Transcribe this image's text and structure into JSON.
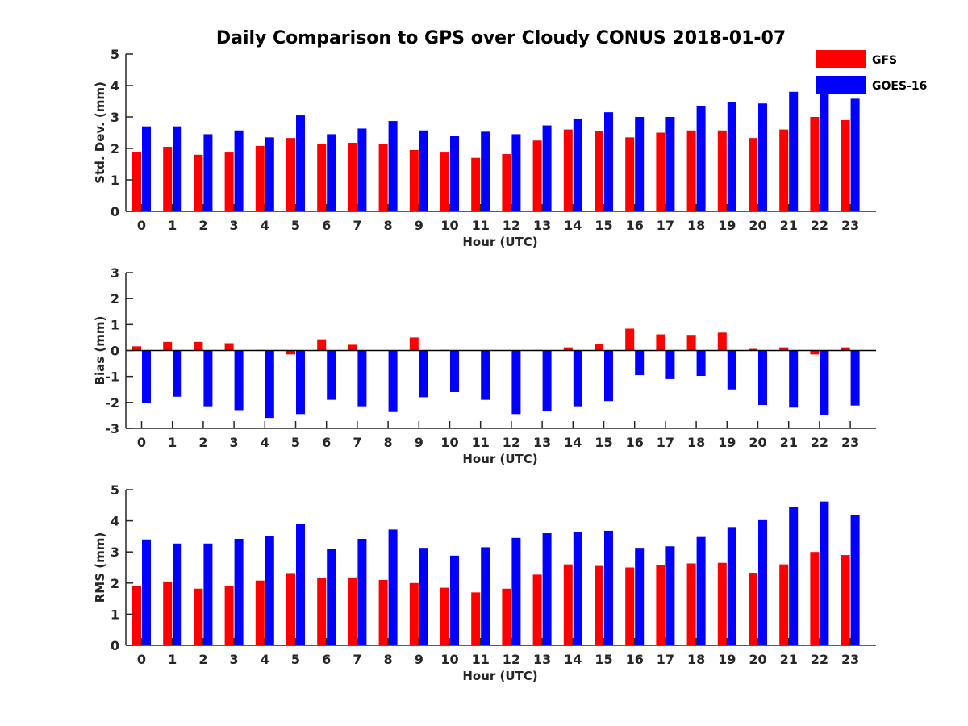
{
  "title": "Daily Comparison to GPS over Cloudy CONUS 2018-01-07",
  "legend": [
    {
      "name": "GFS",
      "color": "#ff0000"
    },
    {
      "name": "GOES-16",
      "color": "#0000ff"
    }
  ],
  "chart_data": [
    {
      "type": "bar",
      "xlabel": "Hour (UTC)",
      "ylabel": "Std. Dev. (mm)",
      "ylim": [
        0,
        5
      ],
      "yticks": [
        0,
        1,
        2,
        3,
        4,
        5
      ],
      "categories": [
        "0",
        "1",
        "2",
        "3",
        "4",
        "5",
        "6",
        "7",
        "8",
        "9",
        "10",
        "11",
        "12",
        "13",
        "14",
        "15",
        "16",
        "17",
        "18",
        "19",
        "20",
        "21",
        "22",
        "23"
      ],
      "series": [
        {
          "name": "GFS",
          "color": "#ff0000",
          "values": [
            1.88,
            2.05,
            1.8,
            1.87,
            2.08,
            2.33,
            2.13,
            2.18,
            2.13,
            1.95,
            1.87,
            1.7,
            1.82,
            2.25,
            2.6,
            2.55,
            2.35,
            2.5,
            2.57,
            2.57,
            2.33,
            2.6,
            3.0,
            2.9
          ]
        },
        {
          "name": "GOES-16",
          "color": "#0000ff",
          "values": [
            2.7,
            2.7,
            2.45,
            2.57,
            2.35,
            3.05,
            2.45,
            2.63,
            2.87,
            2.57,
            2.4,
            2.53,
            2.45,
            2.73,
            2.95,
            3.15,
            3.0,
            3.0,
            3.35,
            3.48,
            3.43,
            3.8,
            3.88,
            3.58
          ]
        }
      ]
    },
    {
      "type": "bar",
      "xlabel": "Hour (UTC)",
      "ylabel": "Bias (mm)",
      "ylim": [
        -3,
        3
      ],
      "yticks": [
        -3,
        -2,
        -1,
        0,
        1,
        2,
        3
      ],
      "categories": [
        "0",
        "1",
        "2",
        "3",
        "4",
        "5",
        "6",
        "7",
        "8",
        "9",
        "10",
        "11",
        "12",
        "13",
        "14",
        "15",
        "16",
        "17",
        "18",
        "19",
        "20",
        "21",
        "22",
        "23"
      ],
      "series": [
        {
          "name": "GFS",
          "color": "#ff0000",
          "values": [
            0.16,
            0.33,
            0.33,
            0.28,
            0.02,
            -0.15,
            0.43,
            0.22,
            0.0,
            0.5,
            0.02,
            0.0,
            0.0,
            0.02,
            0.12,
            0.26,
            0.84,
            0.62,
            0.6,
            0.69,
            0.06,
            0.12,
            -0.15,
            0.12
          ]
        },
        {
          "name": "GOES-16",
          "color": "#0000ff",
          "values": [
            -2.03,
            -1.78,
            -2.15,
            -2.3,
            -2.6,
            -2.45,
            -1.9,
            -2.15,
            -2.37,
            -1.8,
            -1.6,
            -1.9,
            -2.45,
            -2.35,
            -2.15,
            -1.95,
            -0.95,
            -1.1,
            -0.98,
            -1.5,
            -2.1,
            -2.2,
            -2.47,
            -2.12
          ]
        }
      ]
    },
    {
      "type": "bar",
      "xlabel": "Hour (UTC)",
      "ylabel": "RMS (mm)",
      "ylim": [
        0,
        5
      ],
      "yticks": [
        0,
        1,
        2,
        3,
        4,
        5
      ],
      "categories": [
        "0",
        "1",
        "2",
        "3",
        "4",
        "5",
        "6",
        "7",
        "8",
        "9",
        "10",
        "11",
        "12",
        "13",
        "14",
        "15",
        "16",
        "17",
        "18",
        "19",
        "20",
        "21",
        "22",
        "23"
      ],
      "series": [
        {
          "name": "GFS",
          "color": "#ff0000",
          "values": [
            1.9,
            2.05,
            1.82,
            1.9,
            2.08,
            2.32,
            2.15,
            2.18,
            2.1,
            2.0,
            1.85,
            1.7,
            1.82,
            2.27,
            2.6,
            2.55,
            2.5,
            2.57,
            2.63,
            2.65,
            2.33,
            2.6,
            3.0,
            2.9
          ]
        },
        {
          "name": "GOES-16",
          "color": "#0000ff",
          "values": [
            3.4,
            3.27,
            3.27,
            3.42,
            3.5,
            3.9,
            3.1,
            3.42,
            3.72,
            3.13,
            2.88,
            3.15,
            3.45,
            3.6,
            3.65,
            3.68,
            3.13,
            3.18,
            3.48,
            3.8,
            4.02,
            4.43,
            4.62,
            4.18
          ]
        }
      ]
    }
  ]
}
